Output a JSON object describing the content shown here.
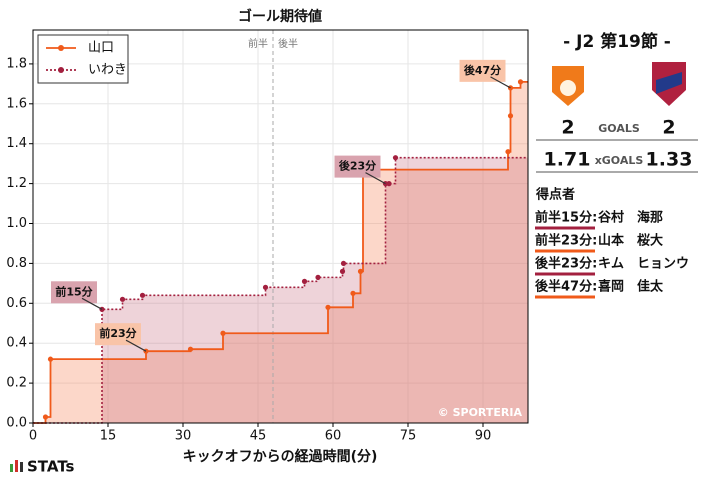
{
  "chart_data": {
    "type": "step",
    "title": "ゴール期待値",
    "xlabel": "キックオフからの経過時間(分)",
    "xlim": [
      0,
      99
    ],
    "ylim": [
      0,
      1.97
    ],
    "xticks": [
      0,
      15,
      30,
      45,
      60,
      75,
      90
    ],
    "yticks": [
      {
        "value": 0,
        "label": "0.0"
      },
      0.2,
      0.4,
      0.6,
      0.8,
      {
        "value": 1,
        "label": "1.0"
      },
      1.2,
      1.4,
      1.6,
      1.8
    ],
    "grid": true,
    "legend": "upper left",
    "halftime": 48,
    "halftime_labels": [
      "前半",
      "後半"
    ],
    "watermark": "© SPORTERIA",
    "series": [
      {
        "name": "山口",
        "color": "#f05a1a",
        "line": "solid",
        "x": [
          2.5,
          3.5,
          22.6,
          31.5,
          38,
          59,
          64,
          65.5,
          66,
          95,
          95.5,
          95.5,
          97.5
        ],
        "values": [
          0.03,
          0.32,
          0.36,
          0.37,
          0.45,
          0.58,
          0.65,
          0.76,
          1.27,
          1.36,
          1.54,
          1.68,
          1.71
        ]
      },
      {
        "name": "いわき",
        "color": "#a3203f",
        "line": "dotted",
        "x": [
          13.8,
          17.9,
          21.9,
          46.5,
          54.3,
          57,
          61.9,
          62.1,
          70.5,
          71.2,
          72.5
        ],
        "values": [
          0.57,
          0.62,
          0.64,
          0.68,
          0.71,
          0.73,
          0.76,
          0.8,
          1.2,
          1.2,
          1.33
        ]
      }
    ],
    "annotations": [
      {
        "text": "前15分",
        "x": 13.8,
        "y": 0.57,
        "color": "#d9a3ae"
      },
      {
        "text": "前23分",
        "x": 22.6,
        "y": 0.36,
        "color": "#f9c4a8"
      },
      {
        "text": "後23分",
        "x": 70.5,
        "y": 1.2,
        "color": "#d9a3ae"
      },
      {
        "text": "後47分",
        "x": 95.5,
        "y": 1.68,
        "color": "#f9c4a8"
      }
    ]
  },
  "match": {
    "round": "- J2 第19節 -",
    "goals_label": "GOALS",
    "xg_label": "xGOALS",
    "home": {
      "score": 2,
      "xg": 1.71
    },
    "away": {
      "score": 2,
      "xg": 1.33
    },
    "scorers_title": "得点者",
    "scorers": [
      {
        "time": "前半15分:",
        "name": "谷村　海那",
        "color": "#a3203f"
      },
      {
        "time": "前半23分:",
        "name": "山本　桜大",
        "color": "#f05a1a"
      },
      {
        "time": "後半23分:",
        "name": "キム　ヒョンウ",
        "color": "#a3203f"
      },
      {
        "time": "後半47分:",
        "name": "喜岡　佳太",
        "color": "#f05a1a"
      }
    ]
  },
  "brand": "STATs"
}
